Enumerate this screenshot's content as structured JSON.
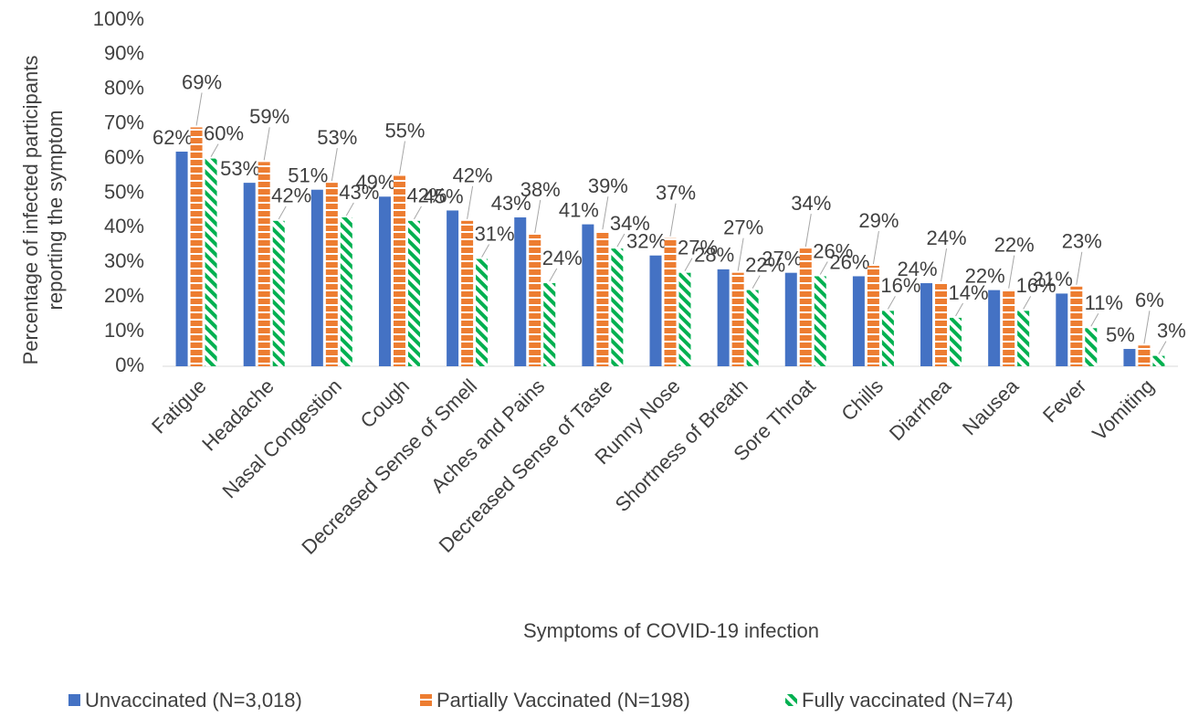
{
  "chart_data": {
    "type": "bar",
    "x_label": "Symptoms of COVID-19 infection",
    "y_label": "Percentage of infected participants reporting the symptom",
    "categories": [
      "Fatigue",
      "Headache",
      "Nasal Congestion",
      "Cough",
      "Decreased Sense of Smell",
      "Aches and Pains",
      "Decreased Sense of Taste",
      "Runny Nose",
      "Shortness of Breath",
      "Sore Throat",
      "Chills",
      "Diarrhea",
      "Nausea",
      "Fever",
      "Vomiting"
    ],
    "series": [
      {
        "name": "Unvaccinated (N=3,018)",
        "color": "#4472c4",
        "values": [
          62,
          53,
          51,
          49,
          45,
          43,
          41,
          32,
          28,
          27,
          26,
          24,
          22,
          21,
          5
        ],
        "value_labels": [
          "62%",
          "53%",
          "51%",
          "49%",
          "45%",
          "43%",
          "41%",
          "32%",
          "28%",
          "27%",
          "26%",
          "24%",
          "22%",
          "21%",
          "5%"
        ]
      },
      {
        "name": "Partially Vaccinated (N=198)",
        "color": "#ed7d31",
        "values": [
          69,
          59,
          53,
          55,
          42,
          38,
          39,
          37,
          27,
          34,
          29,
          24,
          22,
          23,
          6
        ],
        "value_labels": [
          "69%",
          "59%",
          "53%",
          "55%",
          "42%",
          "38%",
          "39%",
          "37%",
          "27%",
          "34%",
          "29%",
          "24%",
          "22%",
          "23%",
          "6%"
        ]
      },
      {
        "name": "Fully vaccinated (N=74)",
        "color": "#00b050",
        "values": [
          60,
          42,
          43,
          42,
          31,
          24,
          34,
          27,
          22,
          26,
          16,
          14,
          16,
          11,
          3
        ],
        "value_labels": [
          "60%",
          "42%",
          "43%",
          "42%",
          "31%",
          "24%",
          "34%",
          "27%",
          "22%",
          "26%",
          "16%",
          "14%",
          "16%",
          "11%",
          "3%"
        ]
      }
    ],
    "ylim": [
      0,
      100
    ],
    "yticks": [
      {
        "value": 0,
        "label": "0%"
      },
      {
        "value": 10,
        "label": "10%"
      },
      {
        "value": 20,
        "label": "20%"
      },
      {
        "value": 30,
        "label": "30%"
      },
      {
        "value": 40,
        "label": "40%"
      },
      {
        "value": 50,
        "label": "50%"
      },
      {
        "value": 60,
        "label": "60%"
      },
      {
        "value": 70,
        "label": "70%"
      },
      {
        "value": 80,
        "label": "80%"
      },
      {
        "value": 90,
        "label": "90%"
      },
      {
        "value": 100,
        "label": "100%"
      }
    ],
    "grid": false,
    "legend": "bottom"
  }
}
